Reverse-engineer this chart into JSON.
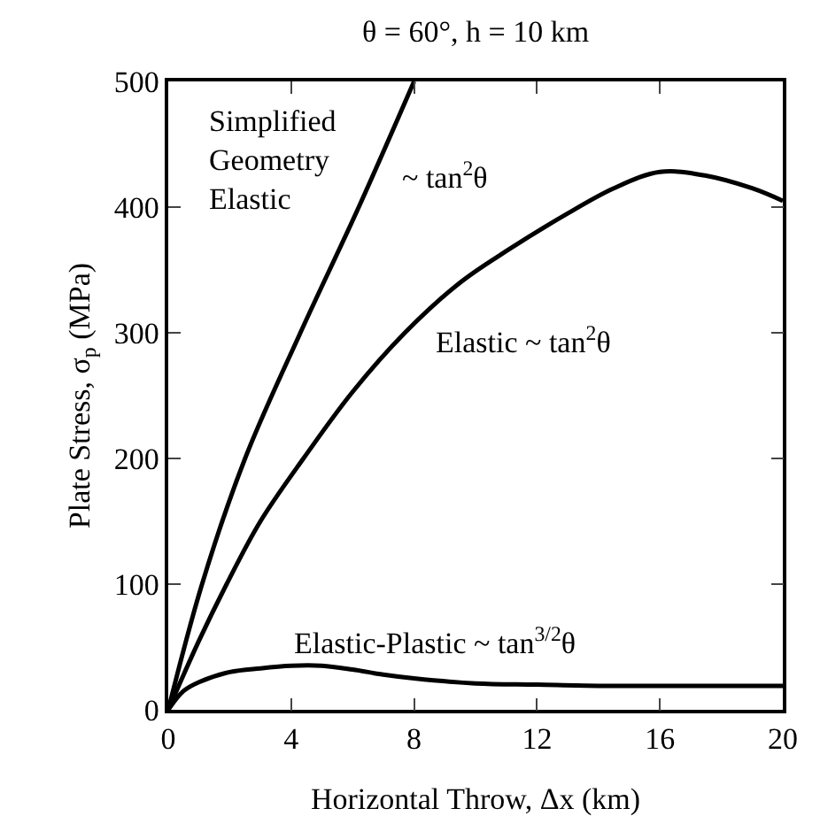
{
  "chart_data": {
    "type": "line",
    "title": "θ = 60°, h = 10 km",
    "xlabel": "Horizontal Throw, Δx (km)",
    "ylabel": "Plate Stress, σ$_{p}$ (MPa)",
    "xlim": [
      0,
      20
    ],
    "xticks": [
      0,
      4,
      8,
      12,
      16,
      20
    ],
    "ylim": [
      0,
      500
    ],
    "yticks": [
      0,
      100,
      200,
      300,
      400,
      500
    ],
    "grid": false,
    "marker": "none",
    "line_style": "solid",
    "series": [
      {
        "color": "#000000",
        "x": [
          0,
          1.1,
          2.5,
          4.3,
          6.2,
          8.0
        ],
        "values": [
          0,
          100,
          200,
          300,
          400,
          500
        ]
      },
      {
        "color": "#000000",
        "x": [
          0,
          1,
          1.9,
          3,
          4.4,
          6,
          7.7,
          9.5,
          11,
          13,
          14.5,
          16,
          17.5,
          19,
          20
        ],
        "values": [
          0,
          55,
          100,
          150,
          200,
          253,
          300,
          340,
          365,
          395,
          415,
          428,
          425,
          415,
          405
        ]
      },
      {
        "color": "#000000",
        "x": [
          0,
          0.5,
          1,
          2,
          3,
          4,
          5,
          6,
          7,
          8,
          10,
          12,
          14,
          16,
          18,
          20
        ],
        "values": [
          0,
          15,
          22,
          30,
          33,
          35,
          35,
          32,
          28,
          25,
          21,
          20,
          19,
          19,
          19,
          19
        ]
      }
    ],
    "annotations": [
      "Simplified\nGeometry\nElastic",
      "~ tan$^{2}$θ",
      "Elastic ~ tan$^{2}$θ",
      "Elastic-Plastic ~ tan$^{3/2}$θ"
    ]
  }
}
